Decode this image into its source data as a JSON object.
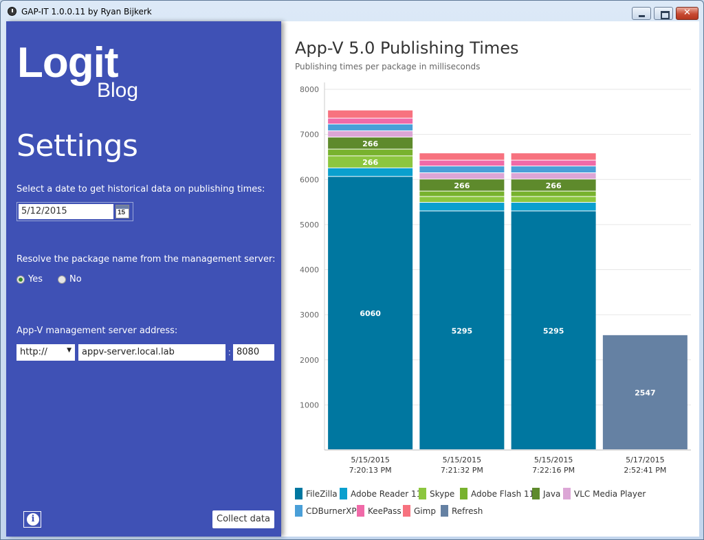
{
  "window": {
    "title": "GAP-IT 1.0.0.11 by Ryan Bijkerk"
  },
  "sidebar": {
    "logo_main": "Logit",
    "logo_sub": "Blog",
    "heading": "Settings",
    "date_label": "Select a date to get historical data on publishing times:",
    "date_value": "5/12/2015",
    "calendar_day": "15",
    "resolve_label": "Resolve the package name from the management server:",
    "radio_yes": "Yes",
    "radio_no": "No",
    "server_label": "App-V management server address:",
    "protocol": "http://",
    "server": "appv-server.local.lab",
    "colon": ":",
    "port": "8080",
    "info_symbol": "i",
    "collect_label": "Collect data"
  },
  "chart": {
    "title": "App-V 5.0 Publishing Times",
    "subtitle": "Publishing times per package in milliseconds"
  },
  "chart_data": {
    "type": "bar",
    "stacked": true,
    "title": "App-V 5.0 Publishing Times",
    "subtitle": "Publishing times per package in milliseconds",
    "ylim": [
      0,
      8000
    ],
    "yticks": [
      1000,
      2000,
      3000,
      4000,
      5000,
      6000,
      7000,
      8000
    ],
    "grid": true,
    "legend_position": "bottom",
    "categories": [
      [
        "5/15/2015",
        "7:20:13 PM"
      ],
      [
        "5/15/2015",
        "7:21:32 PM"
      ],
      [
        "5/15/2015",
        "7:22:16 PM"
      ],
      [
        "5/17/2015",
        "2:52:41 PM"
      ]
    ],
    "series": [
      {
        "name": "FileZilla",
        "color": "#0077a0",
        "values": [
          6060,
          5295,
          5295,
          0
        ],
        "show_labels": true
      },
      {
        "name": "Adobe Reader 11",
        "color": "#0a9fce",
        "values": [
          190,
          190,
          190,
          0
        ]
      },
      {
        "name": "Skype",
        "color": "#8cc63f",
        "values": [
          266,
          130,
          130,
          0
        ],
        "label_first": true
      },
      {
        "name": "Adobe Flash 11",
        "color": "#78b22e",
        "values": [
          150,
          120,
          120,
          0
        ]
      },
      {
        "name": "Java",
        "color": "#5e8a2c",
        "values": [
          266,
          266,
          266,
          0
        ],
        "show_labels": true
      },
      {
        "name": "VLC Media Player",
        "color": "#dca6d6",
        "values": [
          140,
          140,
          140,
          0
        ]
      },
      {
        "name": "CDBurnerXP",
        "color": "#4a9fd8",
        "values": [
          150,
          150,
          150,
          0
        ]
      },
      {
        "name": "KeePass",
        "color": "#f06aa8",
        "values": [
          130,
          130,
          130,
          0
        ]
      },
      {
        "name": "Gimp",
        "color": "#f7727f",
        "values": [
          180,
          160,
          160,
          0
        ]
      },
      {
        "name": "Refresh",
        "color": "#6581a3",
        "values": [
          0,
          0,
          0,
          2547
        ],
        "show_labels": true
      }
    ]
  }
}
